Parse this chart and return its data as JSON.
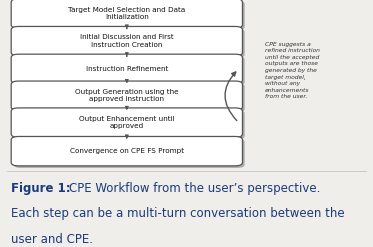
{
  "boxes": [
    {
      "text": "Target Model Selection and Data\nInitialization"
    },
    {
      "text": "Initial Discussion and First\nInstruction Creation"
    },
    {
      "text": "Instruction Refinement"
    },
    {
      "text": "Output Generation using the\napproved instruction"
    },
    {
      "text": "Output Enhancement until\napproved"
    },
    {
      "text": "Convergence on CPE FS Prompt"
    }
  ],
  "arrow_note": "CPE suggests a\nrefined instruction\nuntil the accepted\noutputs are those\ngenerated by the\ntarget model,\nwithout any\nenhancements\nfrom the user.",
  "caption_bold": "Figure 1:",
  "caption_rest": "  CPE Workflow from the user’s perspective.\nEach step can be a multi-turn conversation between the\nuser and CPE.",
  "bg_color": "#f0eeea",
  "box_face": "#ffffff",
  "box_edge": "#555555",
  "shadow_color": "#aaaaaa",
  "text_color": "#111111",
  "note_color": "#333333",
  "caption_color": "#1a3a7a",
  "arrow_color": "#555555"
}
